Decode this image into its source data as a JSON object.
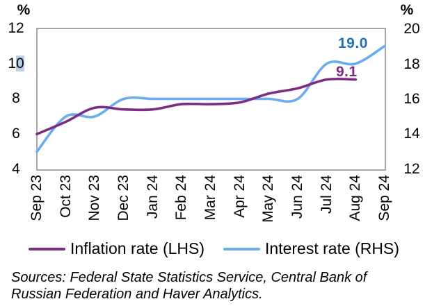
{
  "chart_data": {
    "type": "line",
    "smoothing": "spline",
    "categories": [
      "Sep 23",
      "Oct 23",
      "Nov 23",
      "Dec 23",
      "Jan 24",
      "Feb 24",
      "Mar 24",
      "Apr 24",
      "May 24",
      "Jun 24",
      "Jul 24",
      "Aug 24",
      "Sep 24"
    ],
    "series": [
      {
        "name": "Inflation rate (LHS)",
        "axis": "left",
        "color": "#7c2c82",
        "values": [
          6.0,
          6.7,
          7.5,
          7.4,
          7.4,
          7.7,
          7.7,
          7.8,
          8.3,
          8.6,
          9.1,
          9.1,
          null
        ],
        "end_label": "9.1",
        "end_label_color": "#7c2c82"
      },
      {
        "name": "Interest rate (RHS)",
        "axis": "right",
        "color": "#6bacec",
        "values": [
          13.0,
          15.0,
          15.0,
          16.0,
          16.0,
          16.0,
          16.0,
          16.0,
          16.0,
          16.0,
          18.0,
          18.0,
          19.0
        ],
        "end_label": "19.0",
        "end_label_color": "#1c6fb8"
      }
    ],
    "y_left": {
      "unit": "%",
      "min": 4,
      "max": 12,
      "ticks": [
        "12",
        "10",
        "8",
        "6",
        "4"
      ]
    },
    "y_right": {
      "unit": "%",
      "min": 12,
      "max": 20,
      "ticks": [
        "20",
        "18",
        "16",
        "14",
        "12"
      ]
    },
    "grid": "off",
    "legend_position": "bottom",
    "title": ""
  },
  "y_left_tick_10_selection": {
    "prefix": "1",
    "selected_char": "0",
    "highlight_color": "#b8cfe8"
  },
  "legend": {
    "items": [
      {
        "label": "Inflation rate (LHS)",
        "color": "#7c2c82"
      },
      {
        "label": "Interest rate (RHS)",
        "color": "#6bacec"
      }
    ]
  },
  "sources": {
    "line1": "Sources: Federal State Statistics Service, Central Bank of",
    "line2": "Russian Federation and Haver Analytics."
  },
  "colors": {
    "plot_frame": "#a6a6a6",
    "background": "#ffffff"
  }
}
